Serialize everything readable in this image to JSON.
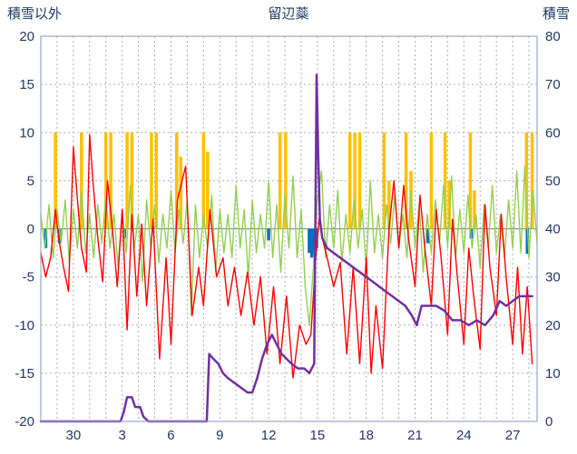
{
  "header": {
    "left_axis_title": "積雪以外",
    "title": "留辺蘂",
    "right_axis_title": "積雪"
  },
  "colors": {
    "tick_text": "#1F3864",
    "grid": "#ADADAD",
    "frame": "#95AAC8",
    "zero_line": "#7F7F7F"
  },
  "chart_data": {
    "type": "line",
    "title": "留辺蘂",
    "left_axis": {
      "label": "積雪以外",
      "min": -20,
      "max": 20,
      "ticks": [
        20,
        15,
        10,
        5,
        0,
        -5,
        -10,
        -15,
        -20
      ]
    },
    "right_axis": {
      "label": "積雪",
      "min": 0,
      "max": 80,
      "ticks": [
        80,
        70,
        60,
        50,
        40,
        30,
        20,
        10,
        0
      ]
    },
    "x_axis": {
      "min": 0,
      "max": 30.5,
      "grid_step": 1,
      "tick_positions": [
        2,
        5,
        8,
        11,
        14,
        17,
        20,
        23,
        26,
        29
      ],
      "tick_labels": [
        "30",
        "3",
        "6",
        "9",
        "12",
        "15",
        "18",
        "21",
        "24",
        "27"
      ]
    },
    "legend": "off",
    "grid": "on",
    "series": [
      {
        "name": "sunshine-bars",
        "type": "bar",
        "axis": "left",
        "color": "#FFC000",
        "bar_width": 3.5,
        "points": [
          [
            0.9,
            10
          ],
          [
            2.5,
            10
          ],
          [
            4.0,
            10
          ],
          [
            4.3,
            10
          ],
          [
            5.3,
            10
          ],
          [
            5.6,
            10
          ],
          [
            6.8,
            10
          ],
          [
            7.1,
            10
          ],
          [
            8.35,
            10
          ],
          [
            8.6,
            7.5
          ],
          [
            10.0,
            10
          ],
          [
            10.25,
            8
          ],
          [
            14.7,
            10
          ],
          [
            15.05,
            10
          ],
          [
            19.0,
            10
          ],
          [
            19.3,
            10
          ],
          [
            19.6,
            10
          ],
          [
            21.1,
            10
          ],
          [
            21.4,
            5
          ],
          [
            22.45,
            10
          ],
          [
            22.75,
            6
          ],
          [
            24.0,
            10
          ],
          [
            24.85,
            10
          ],
          [
            25.1,
            5
          ],
          [
            26.4,
            10
          ],
          [
            26.65,
            4
          ],
          [
            29.85,
            10
          ],
          [
            30.2,
            10
          ]
        ]
      },
      {
        "name": "precipitation-bars",
        "type": "bar",
        "axis": "left",
        "color": "#0070C0",
        "bar_width": 3.5,
        "points": [
          [
            0.3,
            -2
          ],
          [
            1.15,
            -1.5
          ],
          [
            5.15,
            -1
          ],
          [
            14.0,
            -1.2
          ],
          [
            16.5,
            -2.5
          ],
          [
            16.65,
            -3
          ],
          [
            16.8,
            -2.8
          ],
          [
            16.95,
            -2
          ],
          [
            23.8,
            -1.5
          ],
          [
            26.45,
            -1
          ],
          [
            29.9,
            -2.6
          ]
        ]
      },
      {
        "name": "green-line",
        "type": "line-seq",
        "axis": "left",
        "color": "#92D050",
        "width": 1.4,
        "start": 0,
        "step": 0.25,
        "values": [
          1.5,
          -2,
          2.5,
          -3,
          2,
          -1.5,
          3,
          -3.5,
          2,
          -2,
          4,
          -2.5,
          1.5,
          -3,
          2.5,
          -1.5,
          3.5,
          -2,
          1.5,
          -4,
          2,
          -2.5,
          4.5,
          -2,
          1.5,
          -5.5,
          3,
          -2,
          2.5,
          -3.5,
          1.5,
          -2,
          4,
          -2.5,
          2,
          -1.5,
          3,
          -9,
          2.5,
          -3,
          1.5,
          -2,
          3.5,
          -4.5,
          2,
          -2.5,
          1.5,
          -3,
          4.5,
          -2,
          2,
          -5,
          3,
          -2.5,
          1.5,
          -2,
          5,
          -3,
          2.5,
          -4.5,
          3.5,
          -2,
          5.5,
          -3,
          2,
          -6,
          -10,
          -4,
          3,
          6,
          -3,
          2.5,
          -2,
          4,
          -3.5,
          1.5,
          -2.5,
          3,
          -2,
          2,
          -4,
          5,
          -2.5,
          1.5,
          -3,
          2.5,
          -1.5,
          3.5,
          -2,
          1.5,
          -3,
          4,
          -2,
          2.5,
          -4.5,
          1.5,
          -2.5,
          3,
          -1.5,
          4.5,
          -2,
          5.5,
          -3,
          2,
          -2.5,
          3.5,
          -2,
          1.5,
          -4,
          2.5,
          -2,
          4.5,
          -2.5,
          1.5,
          -3,
          3,
          -2,
          6,
          -2.5,
          6.5,
          -3,
          4,
          -1.5
        ]
      },
      {
        "name": "temperature-line",
        "type": "line",
        "axis": "left",
        "color": "#FF0000",
        "width": 1.4,
        "points": [
          [
            0,
            -2.5
          ],
          [
            0.3,
            -5
          ],
          [
            0.6,
            -3
          ],
          [
            0.9,
            2
          ],
          [
            1.1,
            -1
          ],
          [
            1.4,
            -4
          ],
          [
            1.7,
            -6.5
          ],
          [
            2.0,
            8.5
          ],
          [
            2.2,
            4
          ],
          [
            2.5,
            -2
          ],
          [
            2.8,
            -4.5
          ],
          [
            3.0,
            9.8
          ],
          [
            3.2,
            5
          ],
          [
            3.5,
            -1
          ],
          [
            3.8,
            -5.5
          ],
          [
            4.1,
            5
          ],
          [
            4.4,
            0
          ],
          [
            4.7,
            -6
          ],
          [
            5.0,
            2
          ],
          [
            5.3,
            -10.5
          ],
          [
            5.6,
            1.5
          ],
          [
            5.9,
            -7
          ],
          [
            6.2,
            0.5
          ],
          [
            6.5,
            -8
          ],
          [
            6.9,
            1
          ],
          [
            7.3,
            -13.5
          ],
          [
            7.7,
            -3
          ],
          [
            8.0,
            -12
          ],
          [
            8.4,
            3
          ],
          [
            8.9,
            6.5
          ],
          [
            9.3,
            -9
          ],
          [
            9.7,
            -4
          ],
          [
            10.0,
            -8
          ],
          [
            10.4,
            2
          ],
          [
            10.8,
            -5
          ],
          [
            11.2,
            -3
          ],
          [
            11.5,
            -8
          ],
          [
            11.9,
            -4
          ],
          [
            12.3,
            -9
          ],
          [
            12.7,
            -4.5
          ],
          [
            13.1,
            -10
          ],
          [
            13.5,
            -5
          ],
          [
            13.9,
            -13
          ],
          [
            14.3,
            -6
          ],
          [
            14.7,
            -14
          ],
          [
            15.1,
            -7
          ],
          [
            15.5,
            -15.5
          ],
          [
            15.9,
            -10
          ],
          [
            16.3,
            -12
          ],
          [
            16.6,
            -11
          ],
          [
            16.9,
            -3
          ],
          [
            17.1,
            1
          ],
          [
            17.3,
            -1
          ],
          [
            17.6,
            -3
          ],
          [
            18.0,
            -6
          ],
          [
            18.4,
            -3.5
          ],
          [
            18.8,
            -13
          ],
          [
            19.2,
            -4
          ],
          [
            19.6,
            -14
          ],
          [
            20.0,
            -3
          ],
          [
            20.3,
            -15
          ],
          [
            20.6,
            -8
          ],
          [
            21.0,
            -14.5
          ],
          [
            21.4,
            0
          ],
          [
            21.7,
            5
          ],
          [
            22.0,
            -2
          ],
          [
            22.3,
            4.5
          ],
          [
            22.6,
            -1
          ],
          [
            23.0,
            -6
          ],
          [
            23.3,
            3.5
          ],
          [
            23.6,
            -2
          ],
          [
            24.0,
            -8
          ],
          [
            24.3,
            2
          ],
          [
            24.6,
            -3
          ],
          [
            25.0,
            -11
          ],
          [
            25.3,
            1
          ],
          [
            25.6,
            -5
          ],
          [
            26.0,
            -12
          ],
          [
            26.3,
            -2
          ],
          [
            26.6,
            -7
          ],
          [
            27.0,
            -12.5
          ],
          [
            27.3,
            2.5
          ],
          [
            27.6,
            -4
          ],
          [
            28.0,
            -9
          ],
          [
            28.3,
            1.5
          ],
          [
            28.6,
            -5
          ],
          [
            29.0,
            -12
          ],
          [
            29.3,
            -4
          ],
          [
            29.6,
            -13
          ],
          [
            29.9,
            -6
          ],
          [
            30.2,
            -14
          ]
        ]
      },
      {
        "name": "snow-depth-line",
        "type": "line",
        "axis": "right",
        "color": "#7030A0",
        "width": 2.5,
        "points": [
          [
            0,
            0
          ],
          [
            4.9,
            0
          ],
          [
            5.1,
            2
          ],
          [
            5.3,
            5
          ],
          [
            5.6,
            5
          ],
          [
            5.8,
            3
          ],
          [
            6.1,
            3
          ],
          [
            6.3,
            1
          ],
          [
            6.6,
            0
          ],
          [
            10.2,
            0
          ],
          [
            10.35,
            14
          ],
          [
            10.6,
            13
          ],
          [
            10.9,
            12
          ],
          [
            11.2,
            10
          ],
          [
            11.5,
            9
          ],
          [
            11.9,
            8
          ],
          [
            12.3,
            7
          ],
          [
            12.7,
            6
          ],
          [
            13.0,
            6
          ],
          [
            13.3,
            9
          ],
          [
            13.6,
            13
          ],
          [
            13.9,
            16
          ],
          [
            14.2,
            18
          ],
          [
            14.5,
            16
          ],
          [
            14.8,
            14
          ],
          [
            15.1,
            13
          ],
          [
            15.4,
            12
          ],
          [
            15.8,
            11
          ],
          [
            16.2,
            11
          ],
          [
            16.5,
            10
          ],
          [
            16.8,
            12
          ],
          [
            16.95,
            72
          ],
          [
            17.05,
            55
          ],
          [
            17.15,
            42
          ],
          [
            17.3,
            38
          ],
          [
            17.6,
            36
          ],
          [
            18.0,
            35
          ],
          [
            18.4,
            34
          ],
          [
            18.8,
            33
          ],
          [
            19.2,
            32
          ],
          [
            19.6,
            31
          ],
          [
            20.0,
            30
          ],
          [
            20.4,
            29
          ],
          [
            20.8,
            28
          ],
          [
            21.2,
            27
          ],
          [
            21.6,
            26
          ],
          [
            22.0,
            25
          ],
          [
            22.4,
            24
          ],
          [
            22.8,
            22
          ],
          [
            23.1,
            20
          ],
          [
            23.4,
            24
          ],
          [
            23.8,
            24
          ],
          [
            24.3,
            24
          ],
          [
            24.8,
            23
          ],
          [
            25.3,
            21
          ],
          [
            25.8,
            21
          ],
          [
            26.3,
            20
          ],
          [
            26.8,
            21
          ],
          [
            27.3,
            20
          ],
          [
            27.8,
            22
          ],
          [
            28.2,
            25
          ],
          [
            28.6,
            24
          ],
          [
            29.0,
            25
          ],
          [
            29.4,
            26
          ],
          [
            29.8,
            26
          ],
          [
            30.2,
            26
          ]
        ]
      }
    ]
  }
}
